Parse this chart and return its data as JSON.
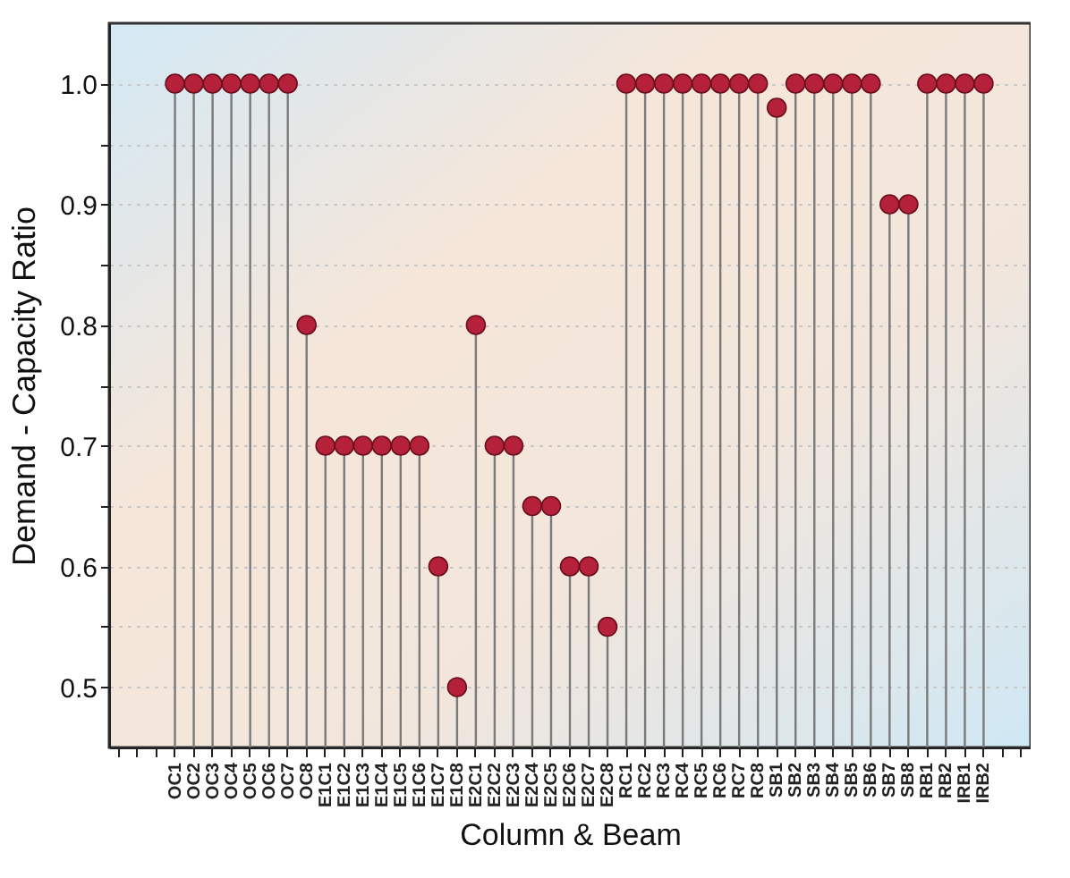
{
  "chart_data": {
    "type": "lollipop",
    "xlabel": "Column & Beam",
    "ylabel": "Demand - Capacity Ratio",
    "categories": [
      null,
      null,
      null,
      "OC1",
      "OC2",
      "OC3",
      "OC4",
      "OC5",
      "OC6",
      "OC7",
      "OC8",
      "E1C1",
      "E1C2",
      "E1C3",
      "E1C4",
      "E1C5",
      "E1C6",
      "E1C7",
      "E1C8",
      "E2C1",
      "E2C2",
      "E2C3",
      "E2C4",
      "E2C5",
      "E2C6",
      "E2C7",
      "E2C8",
      "RC1",
      "RC2",
      "RC3",
      "RC4",
      "RC5",
      "RC6",
      "RC7",
      "RC8",
      "SB1",
      "SB2",
      "SB3",
      "SB4",
      "SB5",
      "SB6",
      "SB7",
      "SB8",
      "RB1",
      "RB2",
      "IRB1",
      "IRB2",
      null,
      null
    ],
    "series": [
      {
        "color": "#b5213a",
        "values": [
          null,
          null,
          null,
          1.0,
          1.0,
          1.0,
          1.0,
          1.0,
          1.0,
          1.0,
          0.8,
          0.7,
          0.7,
          0.7,
          0.7,
          0.7,
          0.7,
          0.6,
          0.5,
          0.8,
          0.7,
          0.7,
          0.65,
          0.65,
          0.6,
          0.6,
          0.55,
          1.0,
          1.0,
          1.0,
          1.0,
          1.0,
          1.0,
          1.0,
          1.0,
          0.98,
          1.0,
          1.0,
          1.0,
          1.0,
          1.0,
          0.9,
          0.9,
          1.0,
          1.0,
          1.0,
          1.0,
          null,
          null
        ]
      }
    ],
    "ylim": [
      0.45,
      1.05
    ],
    "yticks": [
      {
        "value": 0.5,
        "label": "0.5"
      },
      {
        "value": 0.55,
        "label": null
      },
      {
        "value": 0.6,
        "label": "0.6"
      },
      {
        "value": 0.65,
        "label": null
      },
      {
        "value": 0.7,
        "label": "0.7"
      },
      {
        "value": 0.75,
        "label": null
      },
      {
        "value": 0.8,
        "label": "0.8"
      },
      {
        "value": 0.85,
        "label": null
      },
      {
        "value": 0.9,
        "label": "0.9"
      },
      {
        "value": 0.95,
        "label": null
      },
      {
        "value": 1.0,
        "label": "1.0"
      }
    ],
    "grid": true,
    "marker": "circle"
  }
}
